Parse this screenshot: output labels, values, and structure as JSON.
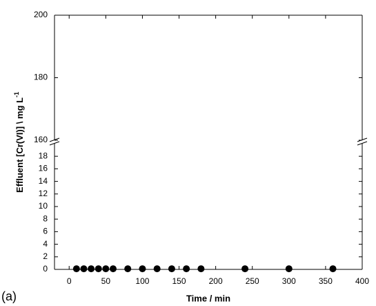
{
  "chart_data": {
    "type": "scatter",
    "panel_label": "(a)",
    "xlabel": "Time / min",
    "ylabel": "Effluent [Cr(VI)] \\ mg L",
    "ylabel_sup": "-1",
    "xlim": [
      -20,
      400
    ],
    "xticks": [
      0,
      50,
      100,
      150,
      200,
      250,
      300,
      350,
      400
    ],
    "y_segments": [
      {
        "ylim": [
          0,
          20
        ],
        "yticks": [
          0,
          2,
          4,
          6,
          8,
          10,
          12,
          14,
          16,
          18
        ]
      },
      {
        "ylim": [
          160,
          200
        ],
        "yticks": [
          160,
          180,
          200
        ]
      }
    ],
    "color": "#000000",
    "x": [
      10,
      20,
      30,
      40,
      50,
      60,
      80,
      100,
      120,
      140,
      160,
      180,
      240,
      300,
      360
    ],
    "values": [
      0.1,
      0.1,
      0.1,
      0.1,
      0.1,
      0.1,
      0.1,
      0.1,
      0.1,
      0.1,
      0.1,
      0.1,
      0.1,
      0.1,
      0.1
    ]
  }
}
